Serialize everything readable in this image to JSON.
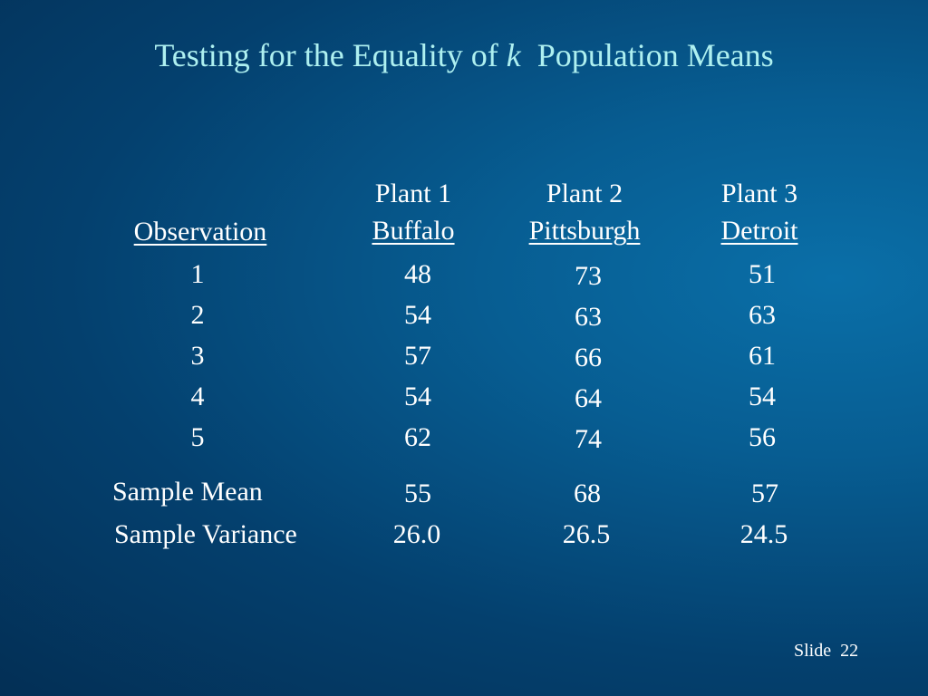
{
  "title": {
    "prefix": "Testing for the Equality of",
    "variable": "k",
    "suffix": "Population Means"
  },
  "table": {
    "observation_header": "Observation",
    "plants": [
      {
        "name": "Plant 1",
        "city": "Buffalo",
        "values": [
          "48",
          "54",
          "57",
          "54",
          "62"
        ],
        "mean": "55",
        "variance": "26.0"
      },
      {
        "name": "Plant 2",
        "city": "Pittsburgh",
        "values": [
          "73",
          "63",
          "66",
          "64",
          "74"
        ],
        "mean": "68",
        "variance": "26.5"
      },
      {
        "name": "Plant 3",
        "city": "Detroit",
        "values": [
          "51",
          "63",
          "61",
          "54",
          "56"
        ],
        "mean": "57",
        "variance": "24.5"
      }
    ],
    "observations": [
      "1",
      "2",
      "3",
      "4",
      "5"
    ],
    "mean_label": "Sample Mean",
    "variance_label": "Sample Variance"
  },
  "footer": {
    "slide_label": "Slide",
    "slide_number": "22"
  }
}
